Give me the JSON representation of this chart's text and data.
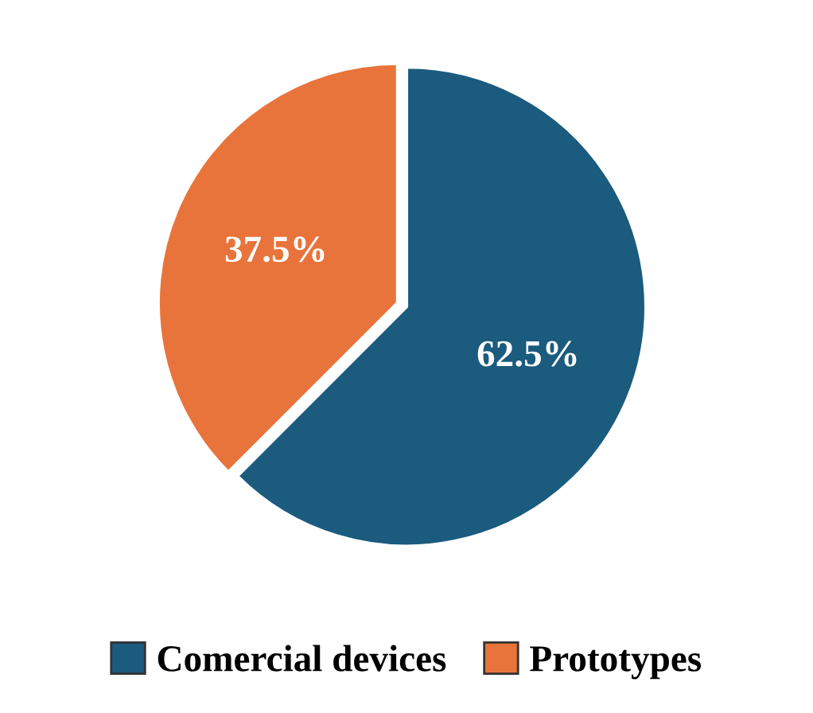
{
  "chart_data": {
    "type": "pie",
    "categories": [
      "Comercial devices",
      "Prototypes"
    ],
    "values": [
      62.5,
      37.5
    ],
    "colors": [
      "#1a5b7e",
      "#e8743b"
    ],
    "value_labels": [
      "62.5%",
      "37.5%"
    ],
    "legend": "bottom"
  }
}
